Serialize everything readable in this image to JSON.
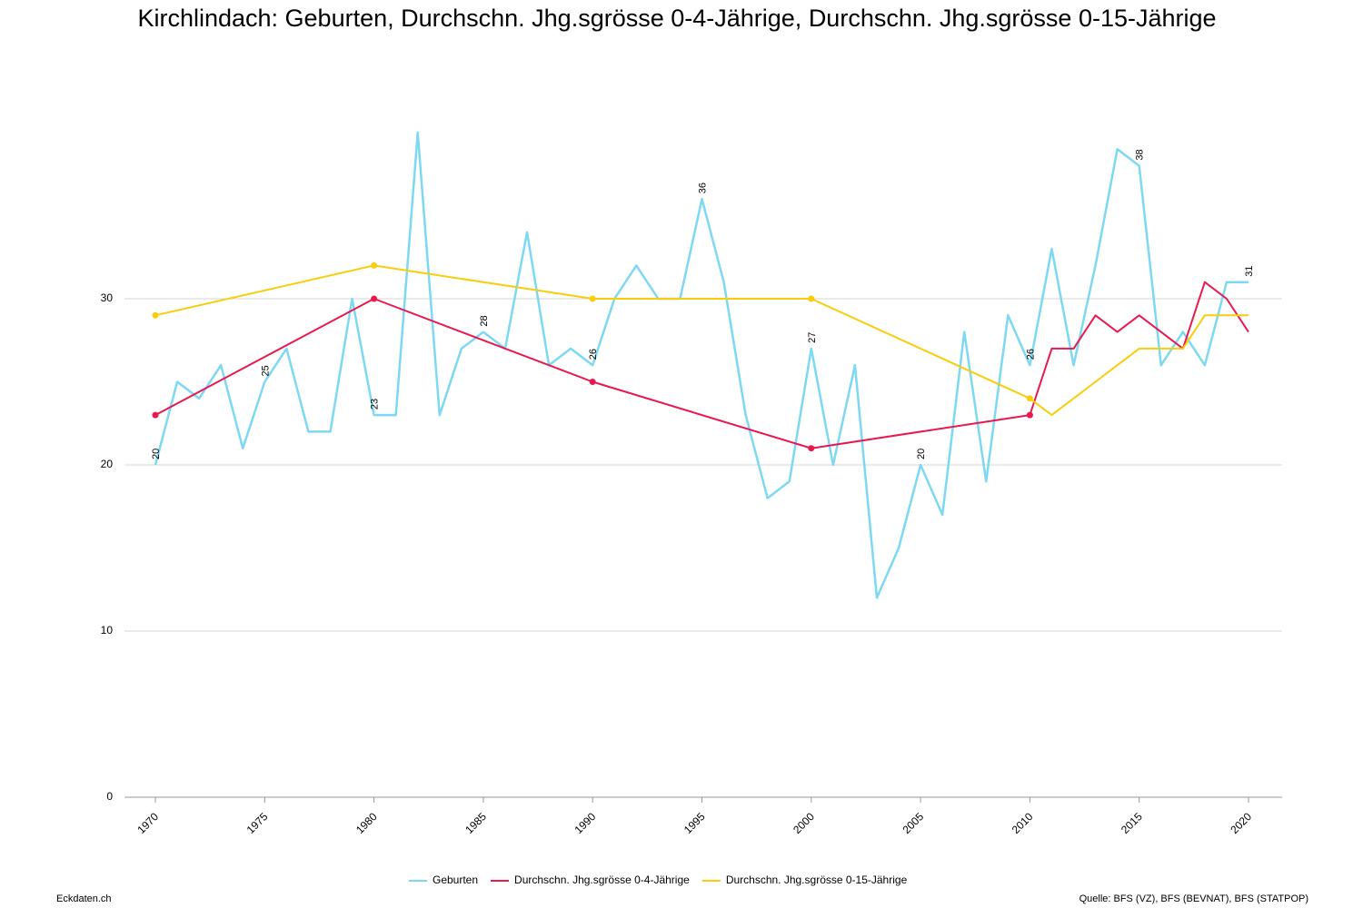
{
  "chart_data": {
    "type": "line",
    "title": "Kirchlindach: Geburten, Durchschn. Jhg.sgrösse 0-4-Jährige, Durchschn. Jhg.sgrösse 0-15-Jährige",
    "footer_left": "Eckdaten.ch",
    "footer_right": "Quelle: BFS (VZ), BFS (BEVNAT), BFS (STATPOP)",
    "xlim": [
      1970,
      2020
    ],
    "xticks": [
      1970,
      1975,
      1980,
      1985,
      1990,
      1995,
      2000,
      2005,
      2010,
      2015,
      2020
    ],
    "ylim": [
      0,
      40
    ],
    "yticks": [
      0,
      10,
      20,
      30
    ],
    "grid": true,
    "legend": "bottom",
    "label_every": 5,
    "series": [
      {
        "name": "Geburten",
        "color": "#7dd8f3",
        "width": 2.5,
        "labels": true,
        "x": [
          1970,
          1971,
          1972,
          1973,
          1974,
          1975,
          1976,
          1977,
          1978,
          1979,
          1980,
          1981,
          1982,
          1983,
          1984,
          1985,
          1986,
          1987,
          1988,
          1989,
          1990,
          1991,
          1992,
          1993,
          1994,
          1995,
          1996,
          1997,
          1998,
          1999,
          2000,
          2001,
          2002,
          2003,
          2004,
          2005,
          2006,
          2007,
          2008,
          2009,
          2010,
          2011,
          2012,
          2013,
          2014,
          2015,
          2016,
          2017,
          2018,
          2019,
          2020
        ],
        "values": [
          20,
          25,
          24,
          26,
          21,
          25,
          27,
          22,
          22,
          30,
          23,
          23,
          40,
          23,
          27,
          28,
          27,
          34,
          26,
          27,
          26,
          30,
          32,
          30,
          30,
          36,
          31,
          23,
          18,
          19,
          27,
          20,
          26,
          12,
          15,
          20,
          17,
          28,
          19,
          29,
          26,
          33,
          26,
          32,
          39,
          38,
          26,
          28,
          26,
          31,
          31
        ]
      },
      {
        "name": "Durchschn. Jhg.sgrösse 0-4-Jährige",
        "color": "#e8194f",
        "width": 2,
        "x": [
          1970,
          1980,
          1990,
          2000,
          2010,
          2011,
          2012,
          2013,
          2014,
          2015,
          2016,
          2017,
          2018,
          2019,
          2020
        ],
        "values": [
          23,
          30,
          25,
          21,
          23,
          27,
          27,
          29,
          28,
          29,
          28,
          27,
          31,
          30,
          28
        ]
      },
      {
        "name": "Durchschn. Jhg.sgrösse 0-15-Jährige",
        "color": "#f9cd0c",
        "width": 2,
        "x": [
          1970,
          1980,
          1990,
          2000,
          2010,
          2011,
          2012,
          2013,
          2014,
          2015,
          2016,
          2017,
          2018,
          2019,
          2020
        ],
        "values": [
          29,
          32,
          30,
          30,
          24,
          23,
          24,
          25,
          26,
          27,
          27,
          27,
          29,
          29,
          29
        ]
      }
    ]
  }
}
